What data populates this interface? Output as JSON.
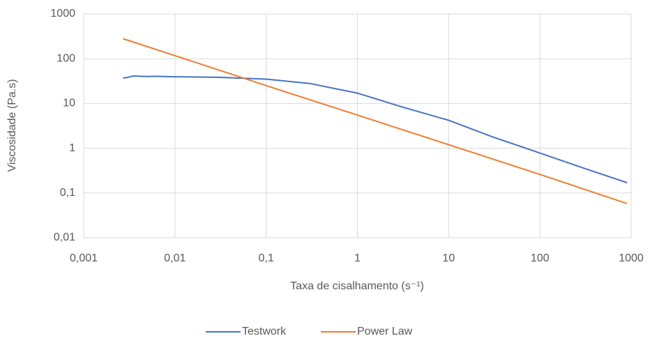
{
  "chart_data": {
    "type": "line",
    "x_label": "Taxa de cisalhamento (s⁻¹)",
    "y_label": "Viscosidade  (Pa.s)",
    "xscale": "log",
    "yscale": "log",
    "grid": true,
    "legend": "bottom",
    "xlim": [
      0.001,
      1000
    ],
    "xticks": [
      {
        "value": 0.001,
        "label": "0,001"
      },
      {
        "value": 0.01,
        "label": "0,01"
      },
      {
        "value": 0.1,
        "label": "0,1"
      },
      1,
      10,
      100,
      1000
    ],
    "ylim": [
      0.01,
      1000
    ],
    "yticks": [
      {
        "value": 0.01,
        "label": "0,01"
      },
      {
        "value": 0.1,
        "label": "0,1"
      },
      1,
      10,
      100,
      1000
    ],
    "series": [
      {
        "name": "Testwork",
        "color": "#4472c4",
        "x": [
          0.0027,
          0.003,
          0.0035,
          0.005,
          0.006,
          0.01,
          0.03,
          0.1,
          0.3,
          1,
          3,
          10,
          30,
          100,
          300,
          900
        ],
        "values": [
          37,
          38,
          41,
          40,
          40.5,
          39.5,
          38.5,
          35,
          28,
          17,
          8.5,
          4.2,
          1.8,
          0.78,
          0.36,
          0.17
        ]
      },
      {
        "name": "Power Law",
        "color": "#ed7d31",
        "x": [
          0.0027,
          0.01,
          0.1,
          1,
          10,
          100,
          900
        ],
        "values": [
          280,
          117,
          25,
          5.5,
          1.2,
          0.26,
          0.058
        ]
      }
    ]
  }
}
